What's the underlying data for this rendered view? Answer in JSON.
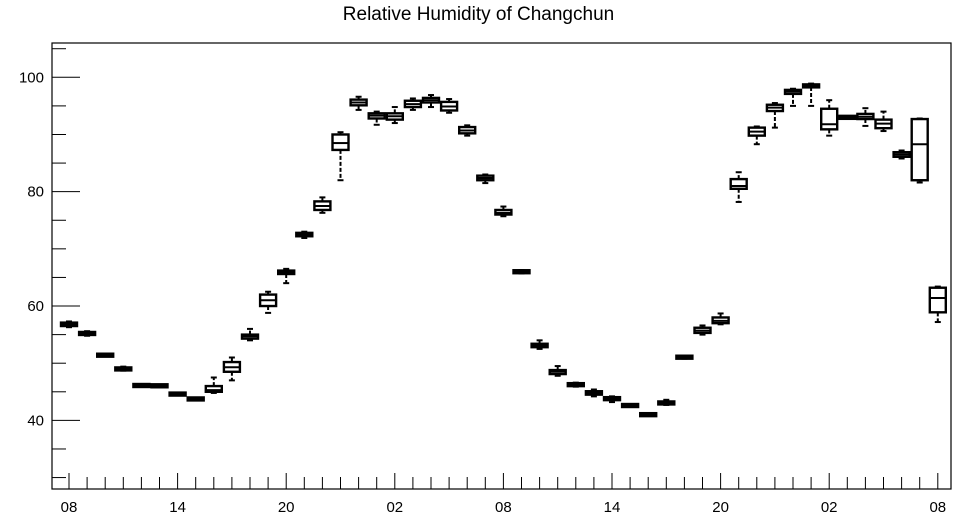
{
  "chart_data": {
    "type": "box",
    "title": "Relative Humidity of Changchun",
    "xlabel": "",
    "ylabel": "",
    "ylim": [
      28,
      106
    ],
    "y_ticks": [
      40,
      60,
      80,
      100
    ],
    "x_tick_labels": [
      "08",
      "14",
      "20",
      "02",
      "08",
      "14",
      "20",
      "02",
      "08"
    ],
    "x_tick_label_hours": [
      0,
      6,
      12,
      18,
      24,
      30,
      36,
      42,
      48
    ],
    "grid": false,
    "series": [
      {
        "hour": 0,
        "min": 56.3,
        "q1": 56.5,
        "median": 56.8,
        "q3": 57.1,
        "max": 57.3
      },
      {
        "hour": 1,
        "min": 54.8,
        "q1": 55.0,
        "median": 55.2,
        "q3": 55.4,
        "max": 55.6
      },
      {
        "hour": 2,
        "min": 51.2,
        "q1": 51.3,
        "median": 51.4,
        "q3": 51.5,
        "max": 51.6
      },
      {
        "hour": 3,
        "min": 48.7,
        "q1": 48.8,
        "median": 49.0,
        "q3": 49.2,
        "max": 49.4
      },
      {
        "hour": 4,
        "min": 45.9,
        "q1": 46.0,
        "median": 46.1,
        "q3": 46.2,
        "max": 46.3
      },
      {
        "hour": 5,
        "min": 45.9,
        "q1": 46.0,
        "median": 46.0,
        "q3": 46.1,
        "max": 46.2
      },
      {
        "hour": 6,
        "min": 44.4,
        "q1": 44.5,
        "median": 44.6,
        "q3": 44.7,
        "max": 44.8
      },
      {
        "hour": 7,
        "min": 43.5,
        "q1": 43.6,
        "median": 43.8,
        "q3": 43.9,
        "max": 44.0
      },
      {
        "hour": 8,
        "min": 44.8,
        "q1": 45.0,
        "median": 45.3,
        "q3": 46.0,
        "max": 47.5
      },
      {
        "hour": 9,
        "min": 47.0,
        "q1": 48.5,
        "median": 49.3,
        "q3": 50.2,
        "max": 51.0
      },
      {
        "hour": 10,
        "min": 54.0,
        "q1": 54.3,
        "median": 54.7,
        "q3": 55.0,
        "max": 56.0
      },
      {
        "hour": 11,
        "min": 58.8,
        "q1": 60.0,
        "median": 61.0,
        "q3": 62.0,
        "max": 62.5
      },
      {
        "hour": 12,
        "min": 64.0,
        "q1": 65.6,
        "median": 65.9,
        "q3": 66.2,
        "max": 66.5
      },
      {
        "hour": 13,
        "min": 71.9,
        "q1": 72.2,
        "median": 72.5,
        "q3": 72.8,
        "max": 73.0
      },
      {
        "hour": 14,
        "min": 76.3,
        "q1": 76.8,
        "median": 77.5,
        "q3": 78.3,
        "max": 79.0
      },
      {
        "hour": 15,
        "min": 82.0,
        "q1": 87.3,
        "median": 88.5,
        "q3": 90.0,
        "max": 90.4
      },
      {
        "hour": 16,
        "min": 94.3,
        "q1": 95.1,
        "median": 95.6,
        "q3": 96.1,
        "max": 96.6
      },
      {
        "hour": 17,
        "min": 91.7,
        "q1": 92.8,
        "median": 93.3,
        "q3": 93.7,
        "max": 94.0
      },
      {
        "hour": 18,
        "min": 92.0,
        "q1": 92.6,
        "median": 93.2,
        "q3": 93.7,
        "max": 94.8
      },
      {
        "hour": 19,
        "min": 94.3,
        "q1": 94.8,
        "median": 95.3,
        "q3": 95.9,
        "max": 96.3
      },
      {
        "hour": 20,
        "min": 94.8,
        "q1": 95.6,
        "median": 96.0,
        "q3": 96.4,
        "max": 96.9
      },
      {
        "hour": 21,
        "min": 93.8,
        "q1": 94.2,
        "median": 94.9,
        "q3": 95.7,
        "max": 96.2
      },
      {
        "hour": 22,
        "min": 89.8,
        "q1": 90.2,
        "median": 90.7,
        "q3": 91.3,
        "max": 91.6
      },
      {
        "hour": 23,
        "min": 81.5,
        "q1": 82.0,
        "median": 82.4,
        "q3": 82.8,
        "max": 83.0
      },
      {
        "hour": 24,
        "min": 75.7,
        "q1": 76.0,
        "median": 76.3,
        "q3": 76.8,
        "max": 77.4
      },
      {
        "hour": 25,
        "min": 65.7,
        "q1": 65.8,
        "median": 66.0,
        "q3": 66.2,
        "max": 66.3
      },
      {
        "hour": 26,
        "min": 52.5,
        "q1": 52.8,
        "median": 53.1,
        "q3": 53.4,
        "max": 54.0
      },
      {
        "hour": 27,
        "min": 47.8,
        "q1": 48.1,
        "median": 48.5,
        "q3": 48.8,
        "max": 49.5
      },
      {
        "hour": 28,
        "min": 45.9,
        "q1": 46.1,
        "median": 46.2,
        "q3": 46.4,
        "max": 46.6
      },
      {
        "hour": 29,
        "min": 44.2,
        "q1": 44.5,
        "median": 44.8,
        "q3": 45.1,
        "max": 45.4
      },
      {
        "hour": 30,
        "min": 43.2,
        "q1": 43.6,
        "median": 43.8,
        "q3": 44.0,
        "max": 44.2
      },
      {
        "hour": 31,
        "min": 42.4,
        "q1": 42.5,
        "median": 42.6,
        "q3": 42.7,
        "max": 42.8
      },
      {
        "hour": 32,
        "min": 40.8,
        "q1": 40.9,
        "median": 41.0,
        "q3": 41.1,
        "max": 41.2
      },
      {
        "hour": 33,
        "min": 42.7,
        "q1": 42.9,
        "median": 43.0,
        "q3": 43.2,
        "max": 43.6
      },
      {
        "hour": 34,
        "min": 50.8,
        "q1": 50.9,
        "median": 51.0,
        "q3": 51.2,
        "max": 51.3
      },
      {
        "hour": 35,
        "min": 55.0,
        "q1": 55.3,
        "median": 55.7,
        "q3": 56.2,
        "max": 56.6
      },
      {
        "hour": 36,
        "min": 56.8,
        "q1": 57.0,
        "median": 57.4,
        "q3": 58.0,
        "max": 58.7
      },
      {
        "hour": 37,
        "min": 78.2,
        "q1": 80.5,
        "median": 81.0,
        "q3": 82.2,
        "max": 83.4
      },
      {
        "hour": 38,
        "min": 88.3,
        "q1": 89.8,
        "median": 90.5,
        "q3": 91.2,
        "max": 91.4
      },
      {
        "hour": 39,
        "min": 91.2,
        "q1": 94.1,
        "median": 94.7,
        "q3": 95.2,
        "max": 95.5
      },
      {
        "hour": 40,
        "min": 95.0,
        "q1": 97.1,
        "median": 97.5,
        "q3": 97.8,
        "max": 98.0
      },
      {
        "hour": 41,
        "min": 95.0,
        "q1": 98.3,
        "median": 98.5,
        "q3": 98.7,
        "max": 98.9
      },
      {
        "hour": 42,
        "min": 89.8,
        "q1": 90.9,
        "median": 91.8,
        "q3": 94.5,
        "max": 96.0
      },
      {
        "hour": 43,
        "min": 92.8,
        "q1": 92.9,
        "median": 93.0,
        "q3": 93.1,
        "max": 93.2
      },
      {
        "hour": 44,
        "min": 91.5,
        "q1": 92.7,
        "median": 93.1,
        "q3": 93.6,
        "max": 94.6
      },
      {
        "hour": 45,
        "min": 90.6,
        "q1": 91.1,
        "median": 91.9,
        "q3": 92.6,
        "max": 94.0
      },
      {
        "hour": 46,
        "min": 85.8,
        "q1": 86.1,
        "median": 86.5,
        "q3": 86.9,
        "max": 87.2
      },
      {
        "hour": 47,
        "min": 81.6,
        "q1": 82.0,
        "median": 88.3,
        "q3": 92.7,
        "max": 92.8
      },
      {
        "hour": 48,
        "min": 57.2,
        "q1": 58.9,
        "median": 61.4,
        "q3": 63.2,
        "max": 63.4
      }
    ]
  }
}
